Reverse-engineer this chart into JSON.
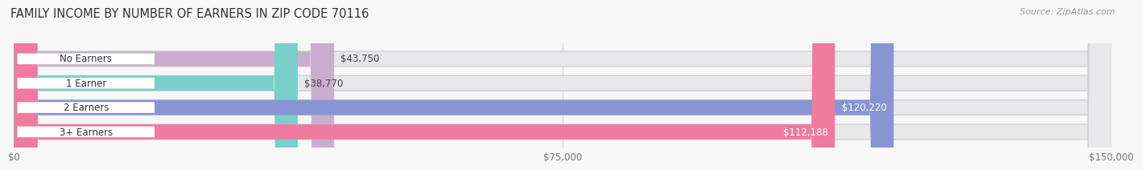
{
  "title": "FAMILY INCOME BY NUMBER OF EARNERS IN ZIP CODE 70116",
  "source": "Source: ZipAtlas.com",
  "categories": [
    "No Earners",
    "1 Earner",
    "2 Earners",
    "3+ Earners"
  ],
  "values": [
    43750,
    38770,
    120220,
    112188
  ],
  "labels": [
    "$43,750",
    "$38,770",
    "$120,220",
    "$112,188"
  ],
  "bar_colors": [
    "#c9aed0",
    "#7acfca",
    "#8894d4",
    "#f07aa0"
  ],
  "background_color": "#f7f7f7",
  "bar_bg_color": "#e8e8eb",
  "xlim_max": 150000,
  "xtick_labels": [
    "$0",
    "$75,000",
    "$150,000"
  ],
  "title_fontsize": 10.5,
  "source_fontsize": 8,
  "label_fontsize": 8.5,
  "category_fontsize": 8.5,
  "bar_height": 0.62,
  "inside_label_threshold": 60000
}
